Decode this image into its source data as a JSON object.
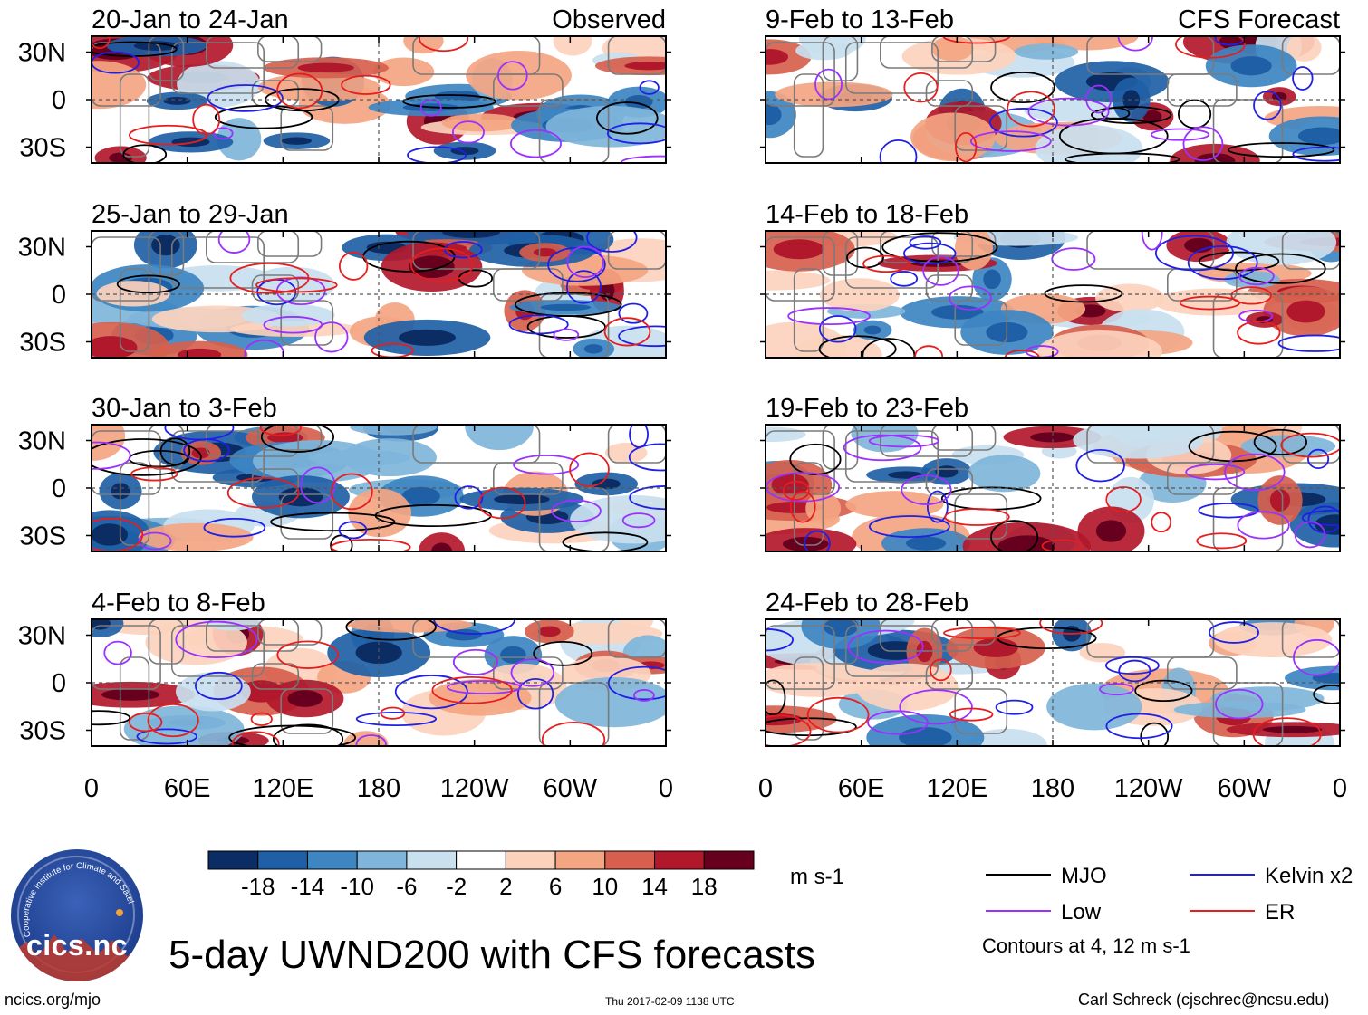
{
  "chart_data": {
    "type": "heatmap",
    "title": "5-day UWND200 with CFS forecasts",
    "variable": "200-hPa zonal wind anomaly",
    "units": "m s-1",
    "colorbar": {
      "ticks": [
        "-18",
        "-14",
        "-10",
        "-6",
        "-2",
        "2",
        "6",
        "10",
        "14",
        "18"
      ],
      "colors": [
        "#0b2d63",
        "#1f5fa6",
        "#3d86c2",
        "#7fb5da",
        "#c9e0ef",
        "#ffffff",
        "#fcd2bd",
        "#f4a582",
        "#d6604d",
        "#b2182b",
        "#67001f"
      ]
    },
    "x_ticks": [
      "0",
      "60E",
      "120E",
      "180",
      "120W",
      "60W",
      "0"
    ],
    "y_ticks": [
      "30N",
      "0",
      "30S"
    ],
    "lat_range": [
      -40,
      40
    ],
    "lon_range": [
      0,
      360
    ],
    "panels": [
      {
        "period": "20-Jan to 24-Jan",
        "label": "Observed",
        "column": "left",
        "row": 1
      },
      {
        "period": "25-Jan to 29-Jan",
        "label": "",
        "column": "left",
        "row": 2
      },
      {
        "period": "30-Jan to 3-Feb",
        "label": "",
        "column": "left",
        "row": 3
      },
      {
        "period": "4-Feb to 8-Feb",
        "label": "",
        "column": "left",
        "row": 4
      },
      {
        "period": "9-Feb to 13-Feb",
        "label": "CFS Forecast",
        "column": "right",
        "row": 1
      },
      {
        "period": "14-Feb to 18-Feb",
        "label": "",
        "column": "right",
        "row": 2
      },
      {
        "period": "19-Feb to 23-Feb",
        "label": "",
        "column": "right",
        "row": 3
      },
      {
        "period": "24-Feb to 28-Feb",
        "label": "",
        "column": "right",
        "row": 4
      }
    ],
    "legend": [
      {
        "name": "MJO",
        "color": "#000000"
      },
      {
        "name": "Kelvin x2",
        "color": "#1f1fe6"
      },
      {
        "name": "Low",
        "color": "#9b30ff"
      },
      {
        "name": "ER",
        "color": "#e61e1e"
      }
    ],
    "contour_note": "Contours at 4, 12 m s-1"
  },
  "footer": {
    "left": "ncics.org/mjo",
    "timestamp": "Thu 2017-02-09 1138 UTC",
    "credit": "Carl Schreck (cjschrec@ncsu.edu)"
  },
  "logo": {
    "text": "cics.nc",
    "arc_text": "Cooperative Institute for Climate and Satellites"
  }
}
